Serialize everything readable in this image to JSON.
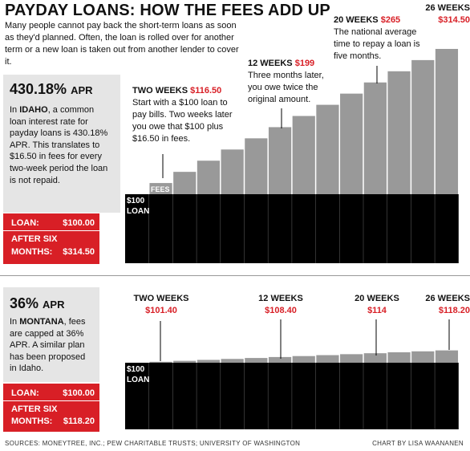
{
  "title": "PAYDAY LOANS: HOW THE FEES ADD UP",
  "subtitle": "Many people cannot pay back the short-term loans as soon as they'd planned. Often, the loan is rolled over for another term or a new loan is taken out from another lender to cover it.",
  "idaho": {
    "apr": "430.18%",
    "apr_unit": "APR",
    "text_pre": "In ",
    "state": "IDAHO",
    "text_post": ", a common loan interest rate for payday loans is 430.18% APR. This translates to $16.50 in fees for every two-week period the loan is not repaid.",
    "loan_label": "LOAN:",
    "loan_value": "$100.00",
    "after_label_1": "AFTER SIX",
    "after_label_2": "MONTHS:",
    "after_value": "$314.50"
  },
  "montana": {
    "apr": "36%",
    "apr_unit": "APR",
    "text_pre": "In ",
    "state": "MONTANA",
    "text_post": ", fees are capped at 36% APR. A similar plan has been proposed in Idaho.",
    "loan_label": "LOAN:",
    "loan_value": "$100.00",
    "after_label_1": "AFTER SIX",
    "after_label_2": "MONTHS:",
    "after_value": "$118.20"
  },
  "annotations_top": {
    "two": {
      "head": "TWO WEEKS",
      "value": "$116.50",
      "text": "Start with a $100 loan to pay bills. Two weeks later you owe that $100 plus $16.50 in fees."
    },
    "twelve": {
      "head": "12 WEEKS",
      "value": "$199",
      "text": "Three months later, you owe twice the original amount."
    },
    "twenty": {
      "head": "20 WEEKS",
      "value": "$265",
      "text": "The national average time to repay a loan is five months."
    },
    "twentysix": {
      "head": "26 WEEKS",
      "value": "$314.50"
    }
  },
  "annotations_bottom": {
    "two": {
      "head": "TWO WEEKS",
      "value": "$101.40"
    },
    "twelve": {
      "head": "12 WEEKS",
      "value": "$108.40"
    },
    "twenty": {
      "head": "20 WEEKS",
      "value": "$114"
    },
    "twentysix": {
      "head": "26 WEEKS",
      "value": "$118.20"
    }
  },
  "chart_labels": {
    "loan1": "$100",
    "loan2": "LOAN",
    "fees": "FEES"
  },
  "footer": {
    "sources": "SOURCES: MONEYTREE, INC.; PEW CHARITABLE TRUSTS; UNIVERSITY OF WASHINGTON",
    "credit": "CHART BY LISA WAANANEN"
  },
  "colors": {
    "loan": "#000000",
    "fees": "#999999",
    "accent": "#d81f26",
    "panel": "#e5e5e5"
  },
  "chart_data": [
    {
      "type": "bar",
      "stacked": true,
      "x": [
        2,
        4,
        6,
        8,
        10,
        12,
        14,
        16,
        18,
        20,
        22,
        24,
        26
      ],
      "xlabel": "weeks",
      "series": [
        {
          "values": [
            100,
            100,
            100,
            100,
            100,
            100,
            100,
            100,
            100,
            100,
            100,
            100,
            100
          ]
        },
        {
          "values": [
            16.5,
            33,
            49.5,
            66,
            82.5,
            99,
            115.5,
            132,
            148.5,
            165,
            181.5,
            198,
            214.5
          ]
        }
      ]
    },
    {
      "type": "bar",
      "stacked": true,
      "x": [
        2,
        4,
        6,
        8,
        10,
        12,
        14,
        16,
        18,
        20,
        22,
        24,
        26
      ],
      "xlabel": "weeks",
      "series": [
        {
          "values": [
            100,
            100,
            100,
            100,
            100,
            100,
            100,
            100,
            100,
            100,
            100,
            100,
            100
          ]
        },
        {
          "values": [
            1.4,
            2.8,
            4.2,
            5.6,
            7,
            8.4,
            9.8,
            11.2,
            12.6,
            14,
            15.4,
            16.8,
            18.2
          ]
        }
      ]
    }
  ]
}
